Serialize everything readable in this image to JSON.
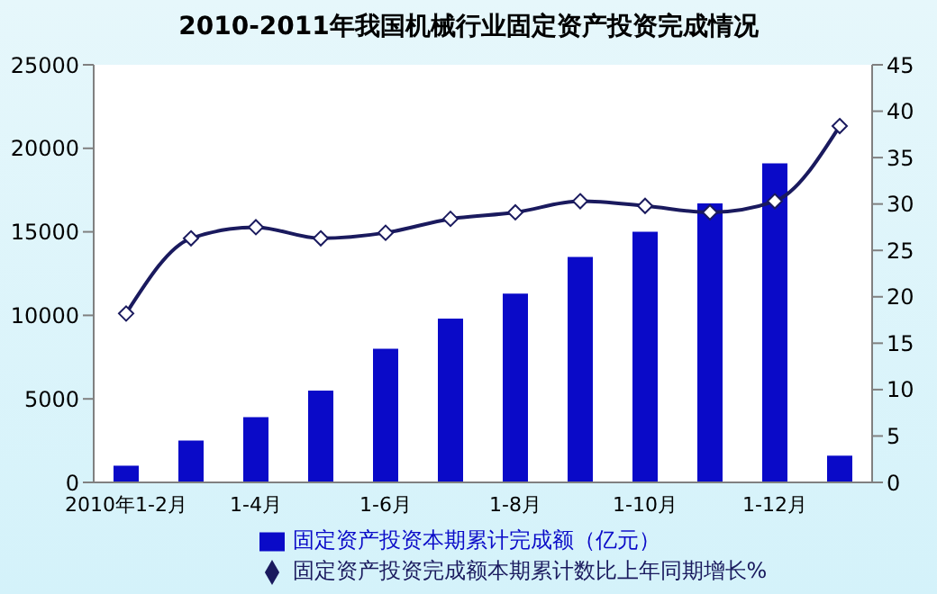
{
  "chart_data": {
    "type": "bar",
    "title": "2010-2011年我国机械行业固定资产投资完成情况",
    "categories": [
      "2010年1-2月",
      null,
      "1-4月",
      null,
      "1-6月",
      null,
      "1-8月",
      null,
      "1-10月",
      null,
      "1-12月",
      null
    ],
    "series": [
      {
        "name": "固定资产投资本期累计完成额（亿元）",
        "color": "#0a0ac8",
        "values": [
          1000,
          2500,
          3900,
          5500,
          8000,
          9800,
          11300,
          13500,
          15000,
          16700,
          19100,
          1600
        ]
      },
      {
        "name": "固定资产投资完成额本期累计数比上年同期增长%",
        "type": "line",
        "axis": "y2",
        "color": "#1a1a5e",
        "marker": "diamond",
        "values": [
          18.2,
          26.3,
          27.5,
          26.3,
          26.9,
          28.4,
          29.1,
          30.3,
          29.8,
          29.1,
          30.3,
          38.4
        ]
      }
    ],
    "ylim": [
      0,
      25000
    ],
    "yticks": [
      0,
      5000,
      10000,
      15000,
      20000,
      25000
    ],
    "y2lim": [
      0,
      45
    ],
    "y2ticks": [
      0,
      5,
      10,
      15,
      20,
      25,
      30,
      35,
      40,
      45
    ],
    "grid": false,
    "legend": "bottom"
  }
}
